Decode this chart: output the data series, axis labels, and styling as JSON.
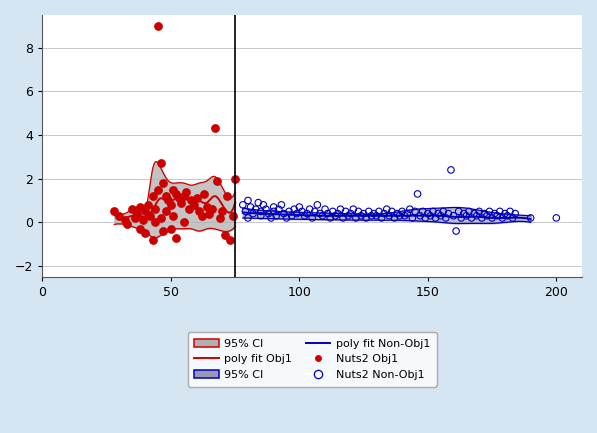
{
  "xlim": [
    0,
    210
  ],
  "ylim": [
    -2.5,
    9.5
  ],
  "xticks": [
    0,
    50,
    100,
    150,
    200
  ],
  "yticks": [
    -2,
    0,
    2,
    4,
    6,
    8
  ],
  "vline_x": 75,
  "bg_color": "#d5e5f2",
  "plot_bg_color": "#ffffff",
  "grid_color": "#c8c8c8",
  "red_scatter": [
    [
      28,
      0.5
    ],
    [
      30,
      0.3
    ],
    [
      32,
      0.1
    ],
    [
      33,
      -0.1
    ],
    [
      35,
      0.6
    ],
    [
      36,
      0.2
    ],
    [
      37,
      0.4
    ],
    [
      38,
      0.7
    ],
    [
      38,
      -0.3
    ],
    [
      39,
      0.1
    ],
    [
      40,
      0.5
    ],
    [
      40,
      -0.5
    ],
    [
      41,
      0.8
    ],
    [
      42,
      0.3
    ],
    [
      43,
      1.2
    ],
    [
      43,
      -0.8
    ],
    [
      44,
      0.0
    ],
    [
      44,
      0.6
    ],
    [
      45,
      9.0
    ],
    [
      45,
      1.5
    ],
    [
      46,
      2.7
    ],
    [
      46,
      0.2
    ],
    [
      47,
      1.8
    ],
    [
      47,
      -0.4
    ],
    [
      48,
      1.2
    ],
    [
      48,
      0.5
    ],
    [
      49,
      1.0
    ],
    [
      50,
      0.8
    ],
    [
      50,
      -0.3
    ],
    [
      51,
      1.5
    ],
    [
      51,
      0.3
    ],
    [
      52,
      1.3
    ],
    [
      52,
      -0.7
    ],
    [
      53,
      1.1
    ],
    [
      54,
      0.9
    ],
    [
      55,
      1.2
    ],
    [
      55,
      0.0
    ],
    [
      56,
      1.4
    ],
    [
      57,
      0.6
    ],
    [
      58,
      1.0
    ],
    [
      59,
      0.8
    ],
    [
      60,
      1.1
    ],
    [
      61,
      0.5
    ],
    [
      62,
      0.3
    ],
    [
      63,
      1.3
    ],
    [
      64,
      0.7
    ],
    [
      65,
      0.4
    ],
    [
      66,
      0.6
    ],
    [
      67,
      4.3
    ],
    [
      68,
      1.9
    ],
    [
      69,
      0.2
    ],
    [
      70,
      0.5
    ],
    [
      71,
      -0.6
    ],
    [
      72,
      1.2
    ],
    [
      73,
      -0.8
    ],
    [
      74,
      0.3
    ],
    [
      75,
      2.0
    ]
  ],
  "blue_scatter": [
    [
      78,
      0.8
    ],
    [
      79,
      0.5
    ],
    [
      80,
      1.0
    ],
    [
      80,
      0.2
    ],
    [
      81,
      0.7
    ],
    [
      82,
      0.4
    ],
    [
      83,
      0.6
    ],
    [
      84,
      0.9
    ],
    [
      85,
      0.3
    ],
    [
      85,
      0.5
    ],
    [
      86,
      0.8
    ],
    [
      87,
      0.6
    ],
    [
      88,
      0.4
    ],
    [
      89,
      0.2
    ],
    [
      90,
      0.7
    ],
    [
      90,
      0.5
    ],
    [
      91,
      0.3
    ],
    [
      92,
      0.6
    ],
    [
      93,
      0.8
    ],
    [
      94,
      0.4
    ],
    [
      95,
      0.2
    ],
    [
      96,
      0.5
    ],
    [
      97,
      0.3
    ],
    [
      98,
      0.6
    ],
    [
      99,
      0.4
    ],
    [
      100,
      0.7
    ],
    [
      101,
      0.5
    ],
    [
      102,
      0.3
    ],
    [
      103,
      0.4
    ],
    [
      104,
      0.6
    ],
    [
      105,
      0.2
    ],
    [
      106,
      0.5
    ],
    [
      107,
      0.8
    ],
    [
      108,
      0.4
    ],
    [
      109,
      0.3
    ],
    [
      110,
      0.6
    ],
    [
      111,
      0.4
    ],
    [
      112,
      0.2
    ],
    [
      113,
      0.5
    ],
    [
      114,
      0.3
    ],
    [
      115,
      0.4
    ],
    [
      116,
      0.6
    ],
    [
      117,
      0.2
    ],
    [
      118,
      0.5
    ],
    [
      119,
      0.3
    ],
    [
      120,
      0.4
    ],
    [
      121,
      0.6
    ],
    [
      122,
      0.2
    ],
    [
      123,
      0.5
    ],
    [
      124,
      0.3
    ],
    [
      125,
      0.4
    ],
    [
      126,
      0.2
    ],
    [
      127,
      0.5
    ],
    [
      128,
      0.3
    ],
    [
      129,
      0.4
    ],
    [
      130,
      0.3
    ],
    [
      131,
      0.5
    ],
    [
      132,
      0.2
    ],
    [
      133,
      0.4
    ],
    [
      134,
      0.6
    ],
    [
      135,
      0.3
    ],
    [
      136,
      0.5
    ],
    [
      137,
      0.2
    ],
    [
      138,
      0.4
    ],
    [
      139,
      0.3
    ],
    [
      140,
      0.5
    ],
    [
      141,
      0.3
    ],
    [
      142,
      0.4
    ],
    [
      143,
      0.6
    ],
    [
      144,
      0.2
    ],
    [
      145,
      0.5
    ],
    [
      146,
      1.3
    ],
    [
      147,
      0.3
    ],
    [
      148,
      0.5
    ],
    [
      149,
      0.2
    ],
    [
      150,
      0.4
    ],
    [
      151,
      0.3
    ],
    [
      152,
      0.5
    ],
    [
      153,
      0.2
    ],
    [
      154,
      0.4
    ],
    [
      155,
      0.3
    ],
    [
      156,
      0.5
    ],
    [
      157,
      0.2
    ],
    [
      158,
      0.4
    ],
    [
      159,
      2.4
    ],
    [
      160,
      0.3
    ],
    [
      161,
      -0.4
    ],
    [
      162,
      0.5
    ],
    [
      163,
      0.2
    ],
    [
      164,
      0.4
    ],
    [
      165,
      0.3
    ],
    [
      166,
      0.5
    ],
    [
      167,
      0.2
    ],
    [
      168,
      0.4
    ],
    [
      169,
      0.3
    ],
    [
      170,
      0.5
    ],
    [
      171,
      0.2
    ],
    [
      172,
      0.4
    ],
    [
      173,
      0.3
    ],
    [
      174,
      0.5
    ],
    [
      175,
      0.2
    ],
    [
      176,
      0.4
    ],
    [
      177,
      0.3
    ],
    [
      178,
      0.5
    ],
    [
      179,
      0.2
    ],
    [
      180,
      0.4
    ],
    [
      181,
      0.3
    ],
    [
      182,
      0.5
    ],
    [
      183,
      0.2
    ],
    [
      184,
      0.4
    ],
    [
      190,
      0.2
    ],
    [
      200,
      0.2
    ]
  ],
  "red_poly_x": [
    28,
    32,
    35,
    38,
    40,
    43,
    46,
    49,
    52,
    55,
    58,
    61,
    64,
    67,
    70,
    75
  ],
  "red_poly_y": [
    0.35,
    0.2,
    0.3,
    0.3,
    0.25,
    0.6,
    1.1,
    0.9,
    1.1,
    1.05,
    1.1,
    1.0,
    0.9,
    1.2,
    0.8,
    0.9
  ],
  "red_ci_upper": [
    0.55,
    0.4,
    0.6,
    0.6,
    0.5,
    2.5,
    2.5,
    1.9,
    1.8,
    1.8,
    1.7,
    1.8,
    1.9,
    2.1,
    1.6,
    1.4
  ],
  "red_ci_lower": [
    -0.1,
    -0.1,
    -0.2,
    -0.3,
    -0.4,
    -0.7,
    -0.6,
    -0.4,
    -0.3,
    -0.3,
    -0.3,
    -0.4,
    -0.3,
    -0.3,
    -0.4,
    -0.2
  ],
  "blue_poly_x": [
    78,
    85,
    95,
    110,
    125,
    135,
    142,
    148,
    155,
    160,
    165,
    170,
    175,
    180,
    190
  ],
  "blue_poly_y": [
    0.45,
    0.4,
    0.35,
    0.3,
    0.3,
    0.3,
    0.3,
    0.3,
    0.3,
    0.25,
    0.25,
    0.25,
    0.2,
    0.2,
    0.15
  ],
  "blue_ci_upper": [
    0.65,
    0.55,
    0.48,
    0.42,
    0.38,
    0.42,
    0.55,
    0.62,
    0.65,
    0.68,
    0.65,
    0.55,
    0.45,
    0.38,
    0.3
  ],
  "blue_ci_lower": [
    0.2,
    0.18,
    0.15,
    0.12,
    0.1,
    0.1,
    0.08,
    0.05,
    0.0,
    -0.05,
    -0.05,
    -0.05,
    -0.05,
    0.0,
    0.0
  ],
  "red_color": "#cc0000",
  "blue_color": "#0000bb",
  "red_ci_fill": "#b0b0b0",
  "blue_ci_fill": "#9898b8"
}
